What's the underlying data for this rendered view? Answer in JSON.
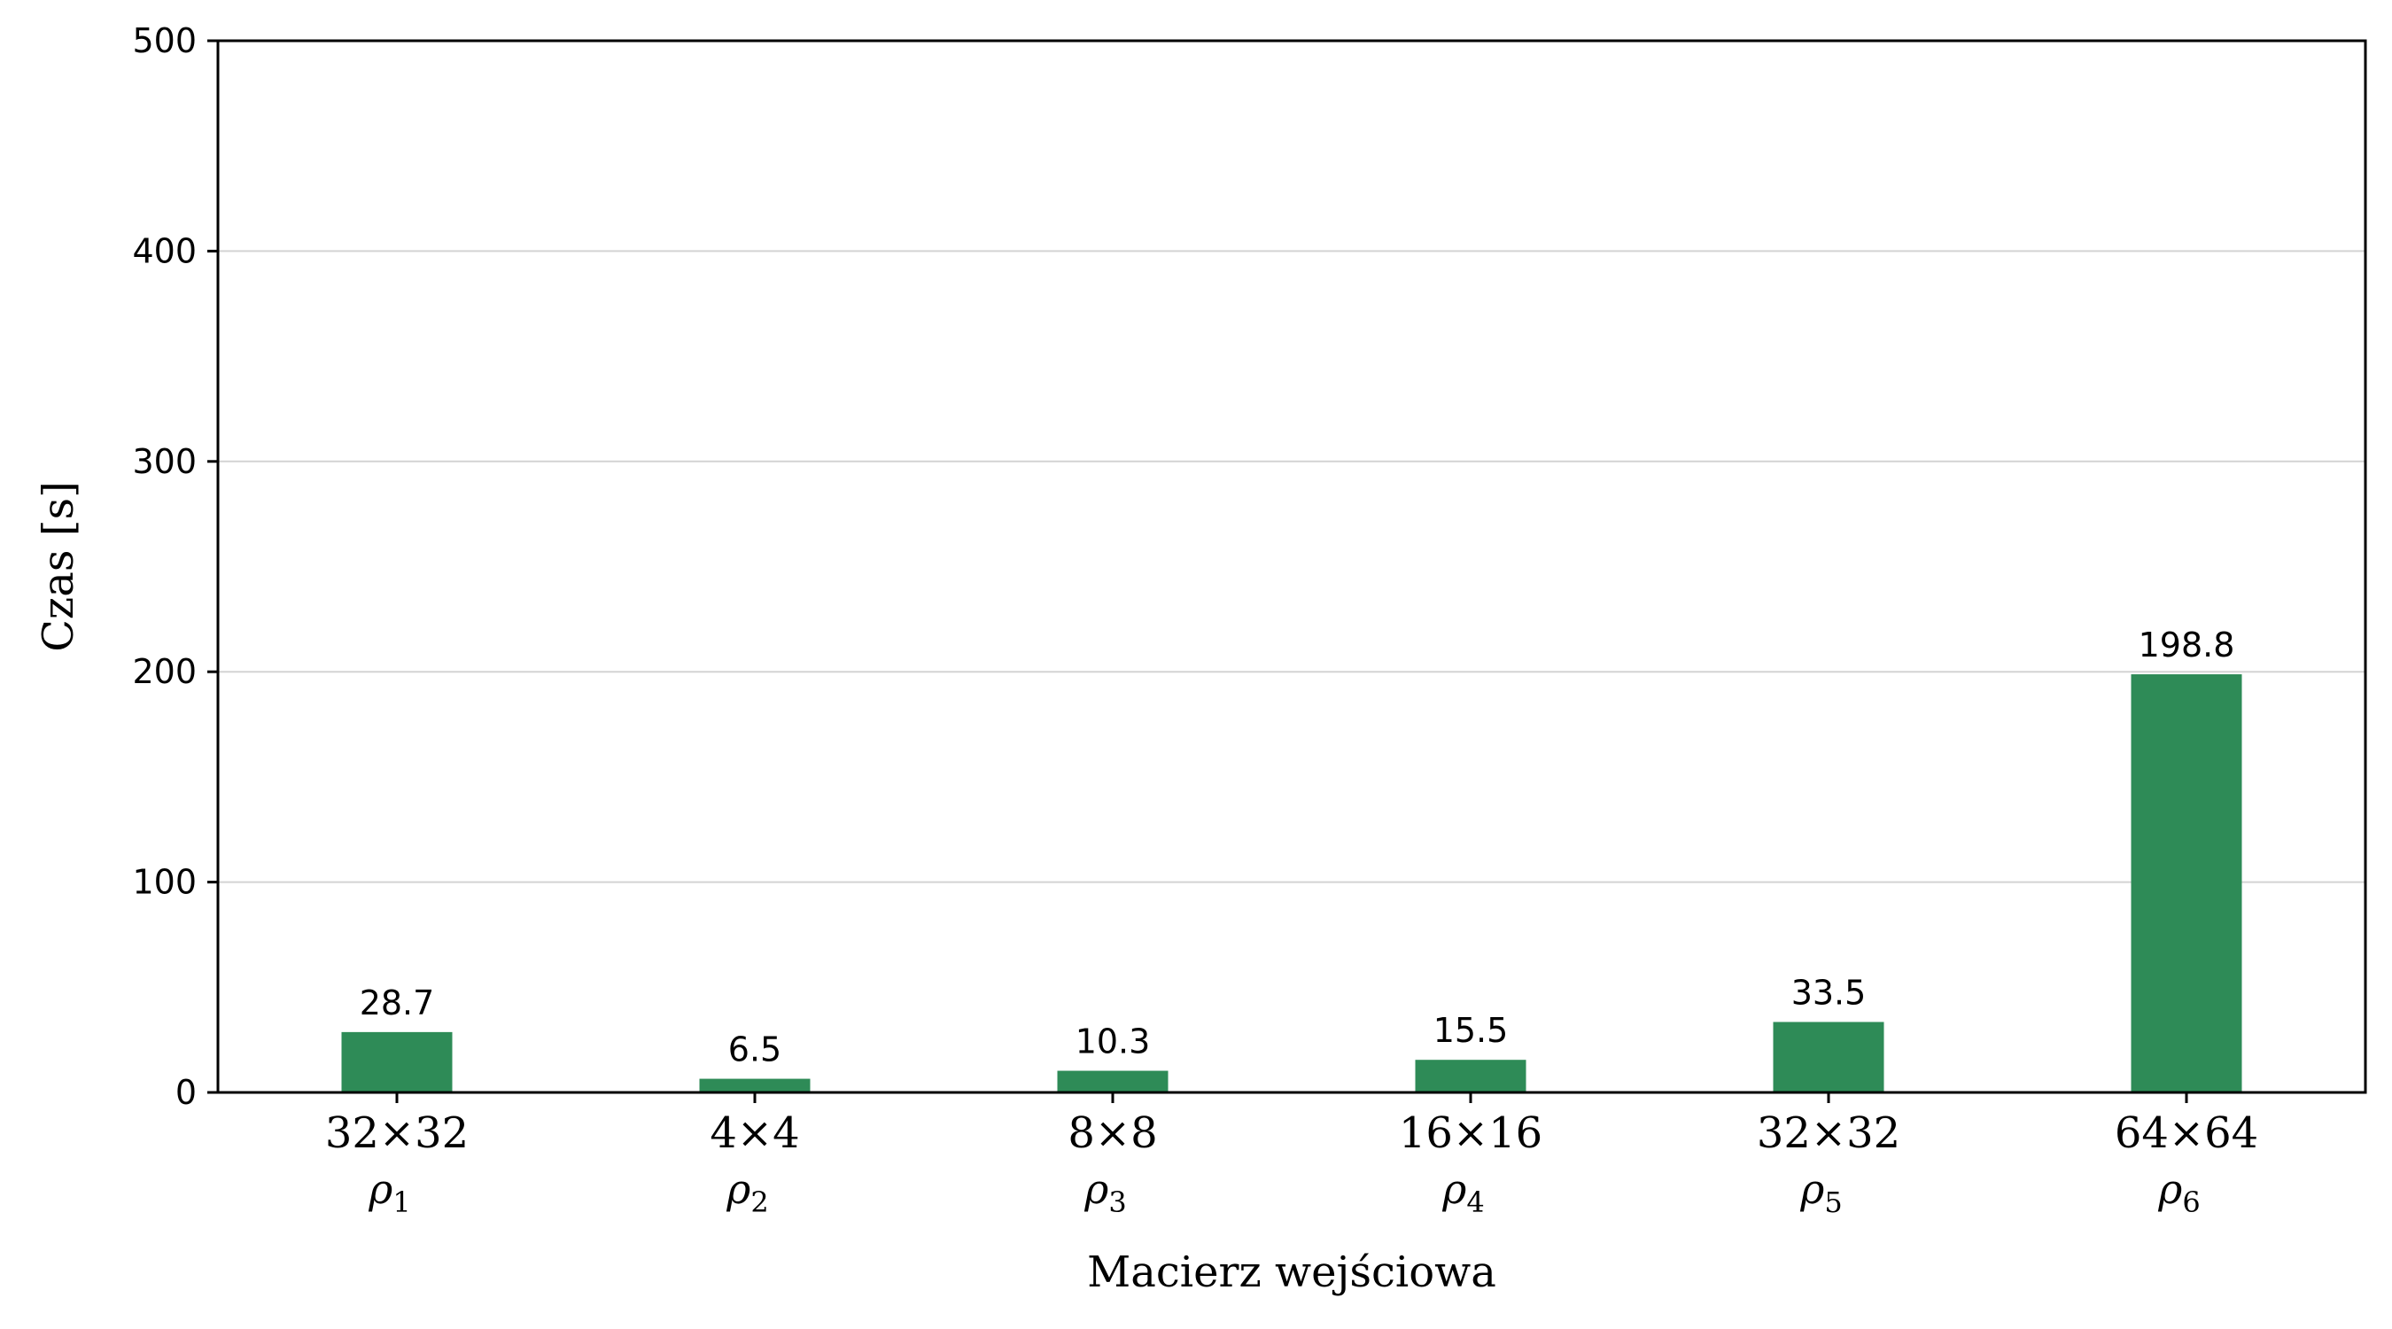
{
  "chart_data": {
    "type": "bar",
    "title": "",
    "xlabel": "Macierz wejściowa",
    "ylabel": "Czas [s]",
    "ylim": [
      0,
      500
    ],
    "yticks": [
      0,
      100,
      200,
      300,
      400,
      500
    ],
    "grid": "horizontal",
    "categories": [
      {
        "size": "32×32",
        "rho": "ρ",
        "rho_index": "1"
      },
      {
        "size": "4×4",
        "rho": "ρ",
        "rho_index": "2"
      },
      {
        "size": "8×8",
        "rho": "ρ",
        "rho_index": "3"
      },
      {
        "size": "16×16",
        "rho": "ρ",
        "rho_index": "4"
      },
      {
        "size": "32×32",
        "rho": "ρ",
        "rho_index": "5"
      },
      {
        "size": "64×64",
        "rho": "ρ",
        "rho_index": "6"
      }
    ],
    "values": [
      28.7,
      6.5,
      10.3,
      15.5,
      33.5,
      198.8
    ],
    "value_labels": [
      "28.7",
      "6.5",
      "10.3",
      "15.5",
      "33.5",
      "198.8"
    ],
    "bar_color": "#2e8b57",
    "grid_color": "#d3d3d3"
  }
}
